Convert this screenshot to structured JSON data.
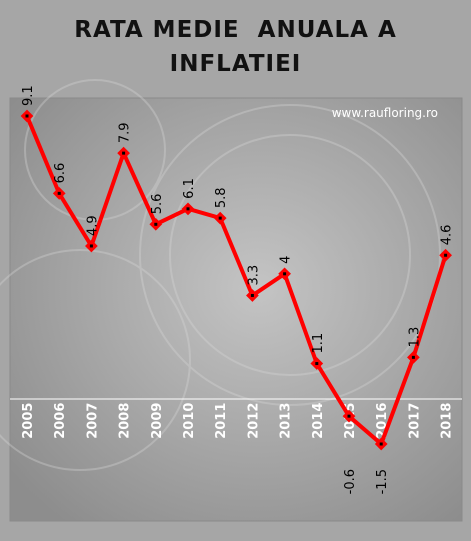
{
  "chart_data": {
    "type": "line",
    "title_lines": [
      "RATA MEDIE  ANUALA A",
      "INFLATIEI"
    ],
    "watermark": "www.raufloring.ro",
    "categories": [
      "2005",
      "2006",
      "2007",
      "2008",
      "2009",
      "2010",
      "2011",
      "2012",
      "2013",
      "2014",
      "2015",
      "2016",
      "2017",
      "2018"
    ],
    "values": [
      9.1,
      6.6,
      4.9,
      7.9,
      5.6,
      6.1,
      5.8,
      3.3,
      4,
      1.1,
      -0.6,
      -1.5,
      1.3,
      4.6
    ],
    "value_labels": [
      "9.1",
      "6.6",
      "4.9",
      "7.9",
      "5.6",
      "6.1",
      "5.8",
      "3.3",
      "4",
      "1.1",
      "-0.6",
      "-1.5",
      "1.3",
      "4.6"
    ],
    "ylim": [
      -1.5,
      9.1
    ],
    "grid": false,
    "legend": "none",
    "line_color": "#ff0000",
    "marker_color": "#ff0000",
    "marker_center_color": "#000000"
  }
}
